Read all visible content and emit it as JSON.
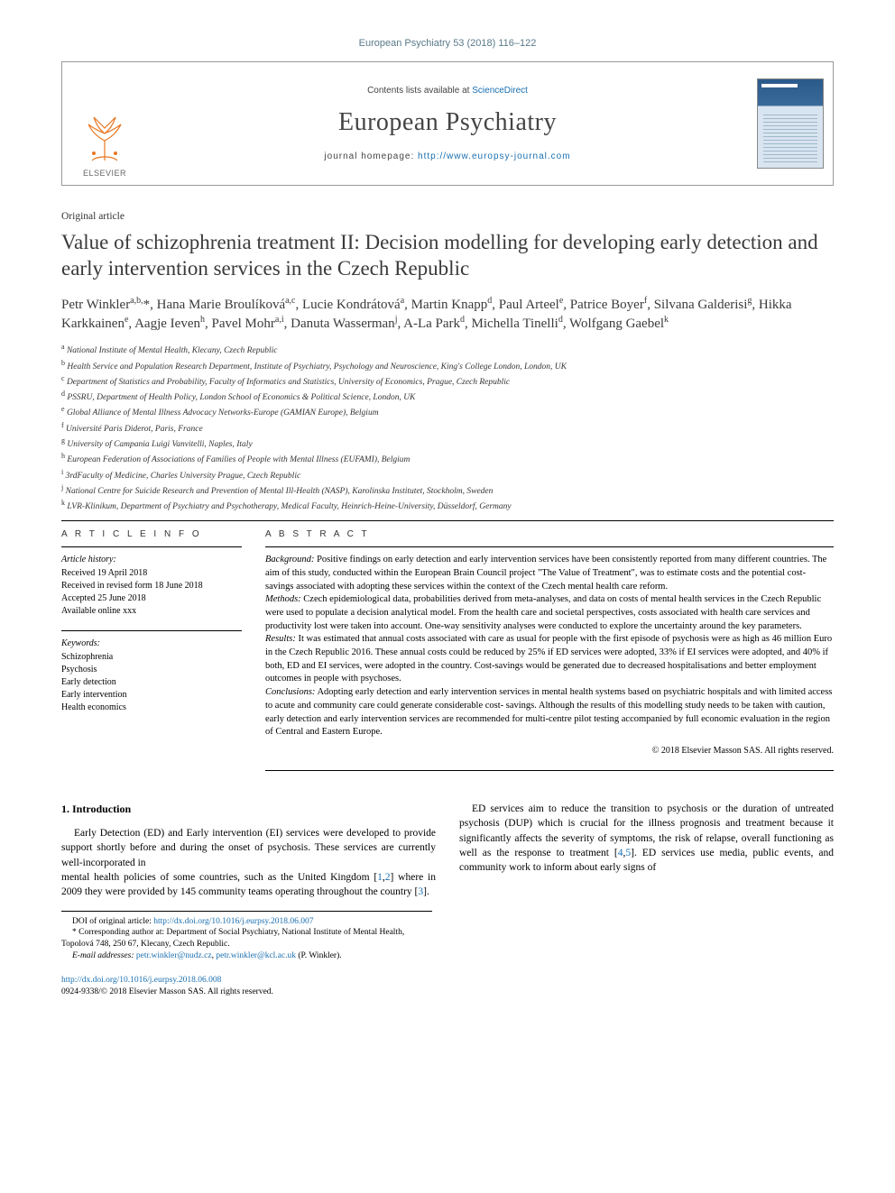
{
  "journal_ref": "European Psychiatry 53 (2018) 116–122",
  "header": {
    "contents_prefix": "Contents lists available at ",
    "contents_link": "ScienceDirect",
    "journal_name": "European Psychiatry",
    "homepage_prefix": "journal homepage: ",
    "homepage_link": "http://www.europsy-journal.com",
    "elsevier": "ELSEVIER"
  },
  "article_type": "Original article",
  "title": "Value of schizophrenia treatment II: Decision modelling for developing early detection and early intervention services in the Czech Republic",
  "authors_html": "Petr Winkler<sup>a,b,</sup>*, Hana Marie Broulíková<sup>a,c</sup>, Lucie Kondrátová<sup>a</sup>, Martin Knapp<sup>d</sup>, Paul Arteel<sup>e</sup>, Patrice Boyer<sup>f</sup>, Silvana Galderisi<sup>g</sup>, Hikka Karkkainen<sup>e</sup>, Aagje Ieven<sup>h</sup>, Pavel Mohr<sup>a,i</sup>, Danuta Wasserman<sup>j</sup>, A-La Park<sup>d</sup>, Michella Tinelli<sup>d</sup>, Wolfgang Gaebel<sup>k</sup>",
  "affiliations": [
    "a National Institute of Mental Health, Klecany, Czech Republic",
    "b Health Service and Population Research Department, Institute of Psychiatry, Psychology and Neuroscience, King's College London, London, UK",
    "c Department of Statistics and Probability, Faculty of Informatics and Statistics, University of Economics, Prague, Czech Republic",
    "d PSSRU, Department of Health Policy, London School of Economics & Political Science, London, UK",
    "e Global Alliance of Mental Illness Advocacy Networks-Europe (GAMIAN Europe), Belgium",
    "f Université Paris Diderot, Paris, France",
    "g University of Campania Luigi Vanvitelli, Naples, Italy",
    "h European Federation of Associations of Families of People with Mental Illness (EUFAMI), Belgium",
    "i 3rdFaculty of Medicine, Charles University Prague, Czech Republic",
    "j National Centre for Suicide Research and Prevention of Mental Ill-Health (NASP), Karolinska Institutet, Stockholm, Sweden",
    "k LVR-Klinikum, Department of Psychiatry and Psychotherapy, Medical Faculty, Heinrich-Heine-University, Düsseldorf, Germany"
  ],
  "info": {
    "heading": "A R T I C L E   I N F O",
    "history_label": "Article history:",
    "history": [
      "Received 19 April 2018",
      "Received in revised form 18 June 2018",
      "Accepted 25 June 2018",
      "Available online xxx"
    ],
    "keywords_label": "Keywords:",
    "keywords": [
      "Schizophrenia",
      "Psychosis",
      "Early detection",
      "Early intervention",
      "Health economics"
    ]
  },
  "abstract": {
    "heading": "A B S T R A C T",
    "background_label": "Background:",
    "background": " Positive findings on early detection and early intervention services have been consistently reported from many different countries. The aim of this study, conducted within the European Brain Council project \"The Value of Treatment\", was to estimate costs and the potential cost- savings associated with adopting these services within the context of the Czech mental health care reform.",
    "methods_label": "Methods:",
    "methods": " Czech epidemiological data, probabilities derived from meta-analyses, and data on costs of mental health services in the Czech Republic were used to populate a decision analytical model. From the health care and societal perspectives, costs associated with health care services and productivity lost were taken into account. One-way sensitivity analyses were conducted to explore the uncertainty around the key parameters.",
    "results_label": "Results:",
    "results": " It was estimated that annual costs associated with care as usual for people with the first episode of psychosis were as high as 46 million Euro in the Czech Republic 2016. These annual costs could be reduced by 25% if ED services were adopted, 33% if EI services were adopted, and 40% if both, ED and EI services, were adopted in the country. Cost-savings would be generated due to decreased hospitalisations and better employment outcomes in people with psychoses.",
    "conclusions_label": "Conclusions:",
    "conclusions": " Adopting early detection and early intervention services in mental health systems based on psychiatric hospitals and with limited access to acute and community care could generate considerable cost- savings. Although the results of this modelling study needs to be taken with caution, early detection and early intervention services are recommended for multi-centre pilot testing accompanied by full economic evaluation in the region of Central and Eastern Europe.",
    "copyright": "© 2018 Elsevier Masson SAS. All rights reserved."
  },
  "body": {
    "section_num": "1.",
    "section_title": " Introduction",
    "p1": "Early Detection (ED) and Early intervention (EI) services were developed to provide support shortly before and during the onset of psychosis. These services are currently well-incorporated in",
    "p2a": "mental health policies of some countries, such as the United Kingdom [",
    "r1": "1",
    "p2b": ",",
    "r2": "2",
    "p2c": "] where in 2009 they were provided by 145 community teams operating throughout the country [",
    "r3": "3",
    "p2d": "].",
    "p3a": "ED services aim to reduce the transition to psychosis or the duration of untreated psychosis (DUP) which is crucial for the illness prognosis and treatment because it significantly affects the severity of symptoms, the risk of relapse, overall functioning as well as the response to treatment [",
    "r4": "4",
    "p3b": ",",
    "r5": "5",
    "p3c": "]. ED services use media, public events, and community work to inform about early signs of"
  },
  "footnotes": {
    "doi_label": "DOI of original article: ",
    "doi_link": "http://dx.doi.org/10.1016/j.eurpsy.2018.06.007",
    "corr": "* Corresponding author at: Department of Social Psychiatry, National Institute of Mental Health, Topolová 748, 250 67, Klecany, Czech Republic.",
    "email_label": "E-mail addresses:",
    "email1": "petr.winkler@nudz.cz",
    "email_sep": ", ",
    "email2": "petr.winkler@kcl.ac.uk",
    "email_suffix": " (P. Winkler)."
  },
  "footer": {
    "doi": "http://dx.doi.org/10.1016/j.eurpsy.2018.06.008",
    "issn_cr": "0924-9338/© 2018 Elsevier Masson SAS. All rights reserved."
  },
  "colors": {
    "link": "#1a6fb0",
    "text": "#000000",
    "muted": "#444444",
    "elsevier": "#e87722"
  }
}
